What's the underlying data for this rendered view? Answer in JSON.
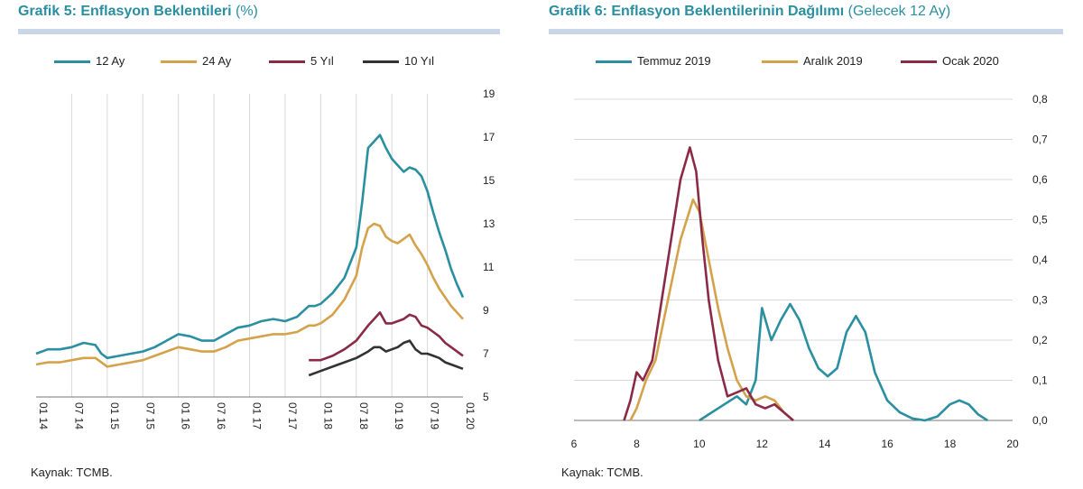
{
  "left": {
    "title_main": "Grafik 5: Enflasyon Beklentileri",
    "title_sub": "(%)",
    "legend": [
      "12 Ay",
      "24 Ay",
      "5 Yıl",
      "10 Yıl"
    ],
    "source": "Kaynak: TCMB."
  },
  "right": {
    "title_main": "Grafik 6: Enflasyon Beklentilerinin Dağılımı",
    "title_sub": "(Gelecek 12 Ay)",
    "legend": [
      "Temmuz 2019",
      "Aralık 2019",
      "Ocak 2020"
    ],
    "source": "Kaynak: TCMB."
  },
  "chart_data": [
    {
      "type": "line",
      "title": "Grafik 5: Enflasyon Beklentileri (%)",
      "xlabel": "",
      "ylabel": "",
      "y_axis_side": "right",
      "ylim": [
        5,
        19
      ],
      "yticks": [
        5,
        7,
        9,
        11,
        13,
        15,
        17,
        19
      ],
      "x_tick_labels": [
        "01 14",
        "07 14",
        "01 15",
        "07 15",
        "01 16",
        "07 16",
        "01 17",
        "07 17",
        "01 18",
        "07 18",
        "01 19",
        "07 19",
        "01 20"
      ],
      "xlim": [
        0,
        72
      ],
      "grid": "vertical",
      "legend_position": "top",
      "series": [
        {
          "name": "12 Ay",
          "color": "#2a8fa0",
          "x": [
            0,
            2,
            4,
            6,
            8,
            10,
            11,
            12,
            14,
            16,
            18,
            20,
            22,
            24,
            26,
            28,
            30,
            32,
            34,
            36,
            38,
            40,
            42,
            44,
            46,
            47,
            48,
            50,
            52,
            54,
            55,
            56,
            57,
            58,
            59,
            60,
            61,
            62,
            63,
            64,
            65,
            66,
            67,
            68,
            69,
            70,
            71,
            72
          ],
          "y": [
            7.0,
            7.2,
            7.2,
            7.3,
            7.5,
            7.4,
            7.0,
            6.8,
            6.9,
            7.0,
            7.1,
            7.3,
            7.6,
            7.9,
            7.8,
            7.6,
            7.6,
            7.9,
            8.2,
            8.3,
            8.5,
            8.6,
            8.5,
            8.7,
            9.2,
            9.2,
            9.3,
            9.8,
            10.5,
            11.9,
            14.0,
            16.5,
            16.8,
            17.1,
            16.5,
            16.0,
            15.7,
            15.4,
            15.6,
            15.5,
            15.2,
            14.5,
            13.5,
            12.6,
            11.8,
            10.9,
            10.2,
            9.6
          ]
        },
        {
          "name": "24 Ay",
          "color": "#d4a24a",
          "x": [
            0,
            2,
            4,
            6,
            8,
            10,
            11,
            12,
            14,
            16,
            18,
            20,
            22,
            24,
            26,
            28,
            30,
            32,
            34,
            36,
            38,
            40,
            42,
            44,
            46,
            47,
            48,
            50,
            52,
            54,
            55,
            56,
            57,
            58,
            59,
            60,
            61,
            62,
            63,
            64,
            65,
            66,
            67,
            68,
            69,
            70,
            71,
            72
          ],
          "y": [
            6.5,
            6.6,
            6.6,
            6.7,
            6.8,
            6.8,
            6.6,
            6.4,
            6.5,
            6.6,
            6.7,
            6.9,
            7.1,
            7.3,
            7.2,
            7.1,
            7.1,
            7.3,
            7.6,
            7.7,
            7.8,
            7.9,
            7.9,
            8.0,
            8.3,
            8.3,
            8.4,
            8.8,
            9.5,
            10.6,
            11.9,
            12.8,
            13.0,
            12.9,
            12.4,
            12.2,
            12.1,
            12.3,
            12.5,
            12.0,
            11.6,
            11.1,
            10.5,
            10.0,
            9.6,
            9.2,
            8.9,
            8.6
          ]
        },
        {
          "name": "5 Yıl",
          "color": "#8b2a45",
          "x": [
            46,
            48,
            50,
            52,
            54,
            56,
            57,
            58,
            59,
            60,
            61,
            62,
            63,
            64,
            65,
            66,
            67,
            68,
            69,
            70,
            71,
            72
          ],
          "y": [
            6.7,
            6.7,
            6.9,
            7.2,
            7.6,
            8.3,
            8.6,
            8.9,
            8.4,
            8.4,
            8.5,
            8.6,
            8.8,
            8.7,
            8.3,
            8.2,
            8.0,
            7.8,
            7.5,
            7.3,
            7.1,
            6.9
          ]
        },
        {
          "name": "10 Yıl",
          "color": "#333333",
          "x": [
            46,
            48,
            50,
            52,
            54,
            56,
            57,
            58,
            59,
            60,
            61,
            62,
            63,
            64,
            65,
            66,
            67,
            68,
            69,
            70,
            71,
            72
          ],
          "y": [
            6.0,
            6.2,
            6.4,
            6.6,
            6.8,
            7.1,
            7.3,
            7.3,
            7.1,
            7.2,
            7.3,
            7.5,
            7.6,
            7.2,
            7.0,
            7.0,
            6.9,
            6.8,
            6.6,
            6.5,
            6.4,
            6.3
          ]
        }
      ]
    },
    {
      "type": "line",
      "title": "Grafik 6: Enflasyon Beklentilerinin Dağılımı (Gelecek 12 Ay)",
      "xlabel": "",
      "ylabel": "",
      "y_axis_side": "right",
      "xlim": [
        6,
        20
      ],
      "ylim": [
        0,
        0.8
      ],
      "xticks": [
        6,
        8,
        10,
        12,
        14,
        16,
        18,
        20
      ],
      "yticks": [
        0.0,
        0.1,
        0.2,
        0.3,
        0.4,
        0.5,
        0.6,
        0.7,
        0.8
      ],
      "ytick_labels": [
        "0,0",
        "0,1",
        "0,2",
        "0,3",
        "0,4",
        "0,5",
        "0,6",
        "0,7",
        "0,8"
      ],
      "grid": "horizontal",
      "legend_position": "top",
      "series": [
        {
          "name": "Temmuz 2019",
          "color": "#2a8fa0",
          "x": [
            10.0,
            10.4,
            10.8,
            11.2,
            11.5,
            11.8,
            12.0,
            12.3,
            12.6,
            12.9,
            13.2,
            13.5,
            13.8,
            14.1,
            14.4,
            14.7,
            15.0,
            15.3,
            15.6,
            16.0,
            16.4,
            16.8,
            17.2,
            17.6,
            18.0,
            18.3,
            18.6,
            18.9,
            19.2
          ],
          "x_start_note": "",
          "y": [
            0.0,
            0.02,
            0.04,
            0.06,
            0.04,
            0.1,
            0.28,
            0.2,
            0.25,
            0.29,
            0.25,
            0.18,
            0.13,
            0.11,
            0.13,
            0.22,
            0.26,
            0.22,
            0.12,
            0.05,
            0.02,
            0.005,
            0.0,
            0.01,
            0.04,
            0.05,
            0.04,
            0.015,
            0.0
          ]
        },
        {
          "name": "Aralık 2019",
          "color": "#d4a24a",
          "x": [
            7.8,
            8.0,
            8.3,
            8.6,
            9.0,
            9.4,
            9.8,
            10.0,
            10.3,
            10.6,
            10.9,
            11.2,
            11.5,
            11.8,
            12.1,
            12.4,
            12.7,
            13.0
          ],
          "y": [
            0.0,
            0.03,
            0.1,
            0.15,
            0.3,
            0.45,
            0.55,
            0.52,
            0.4,
            0.28,
            0.18,
            0.1,
            0.06,
            0.05,
            0.06,
            0.05,
            0.02,
            0.0
          ]
        },
        {
          "name": "Ocak 2020",
          "color": "#8b2a45",
          "x": [
            7.6,
            7.8,
            8.0,
            8.2,
            8.5,
            8.8,
            9.1,
            9.4,
            9.7,
            9.9,
            10.1,
            10.3,
            10.6,
            10.9,
            11.2,
            11.5,
            11.8,
            12.1,
            12.4,
            12.7,
            13.0
          ],
          "y": [
            0.0,
            0.05,
            0.12,
            0.1,
            0.15,
            0.3,
            0.45,
            0.6,
            0.68,
            0.62,
            0.45,
            0.3,
            0.15,
            0.06,
            0.07,
            0.08,
            0.04,
            0.03,
            0.04,
            0.02,
            0.0
          ]
        }
      ]
    }
  ]
}
